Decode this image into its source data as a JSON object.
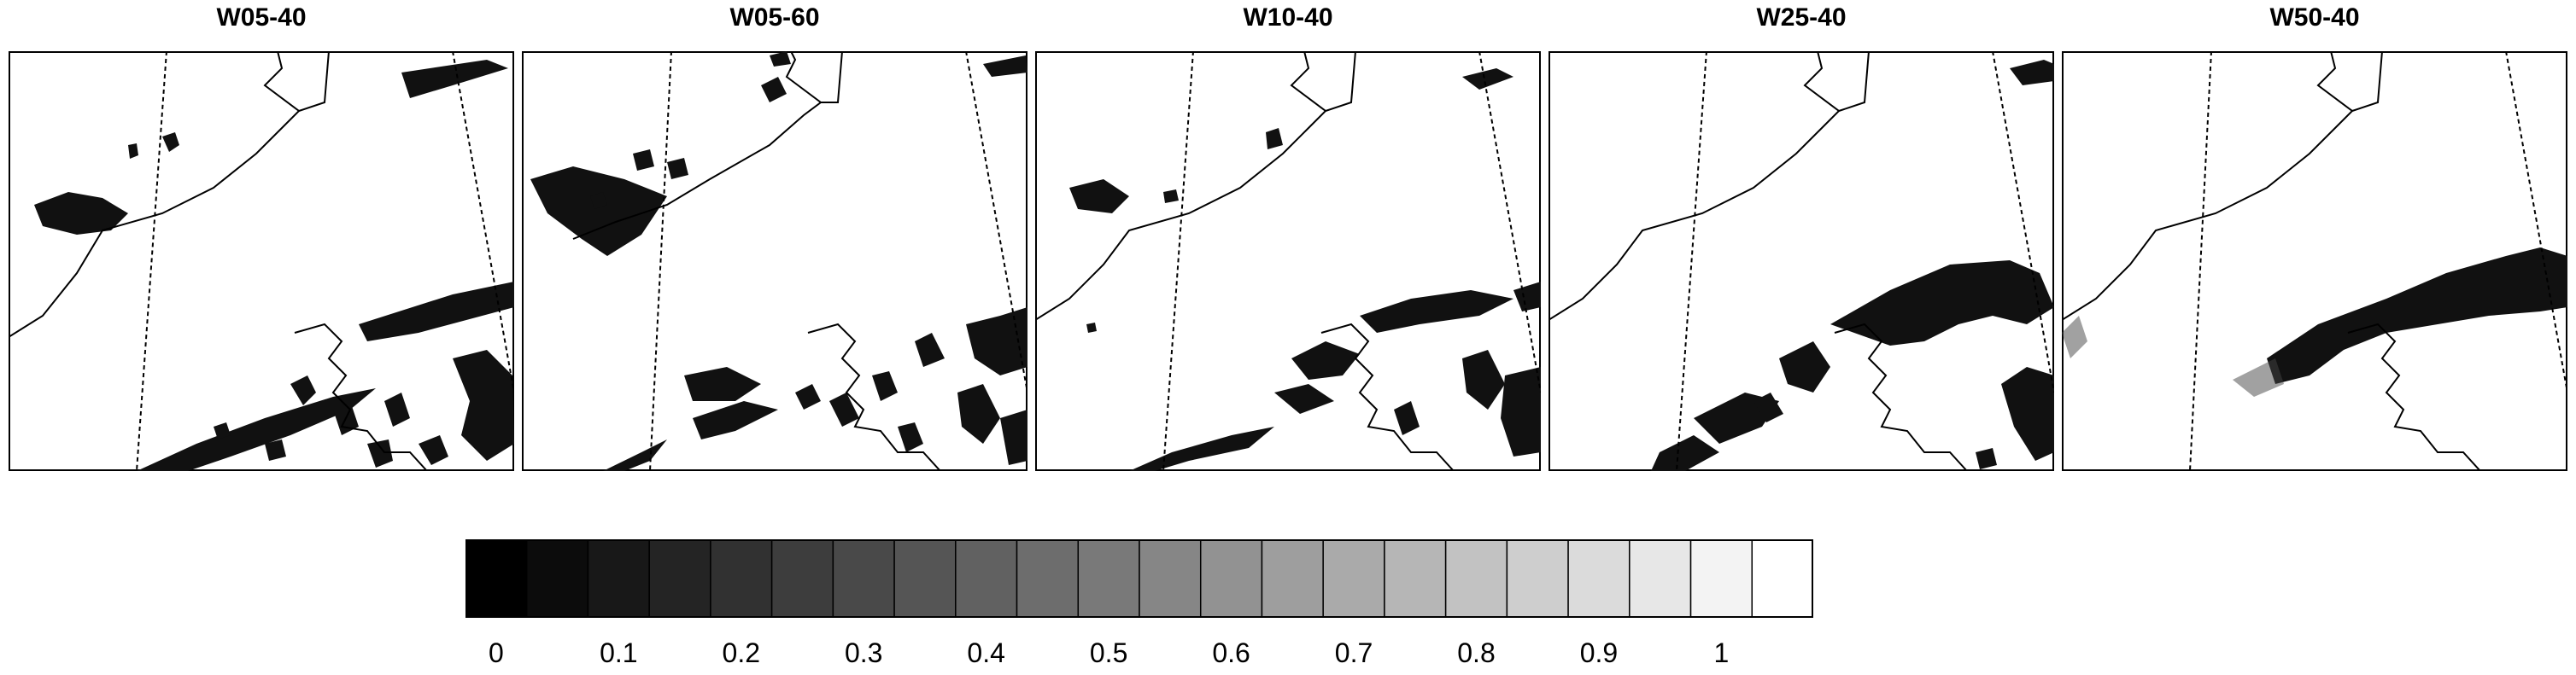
{
  "panels": [
    {
      "title": "W05-40"
    },
    {
      "title": "W05-60"
    },
    {
      "title": "W10-40"
    },
    {
      "title": "W25-40"
    },
    {
      "title": "W50-40"
    }
  ],
  "colorbar": {
    "levels": 22,
    "color_start": "#000000",
    "color_end": "#ffffff",
    "labels": [
      "0",
      "0.1",
      "0.2",
      "0.3",
      "0.4",
      "0.5",
      "0.6",
      "0.7",
      "0.8",
      "0.9",
      "1"
    ]
  }
}
